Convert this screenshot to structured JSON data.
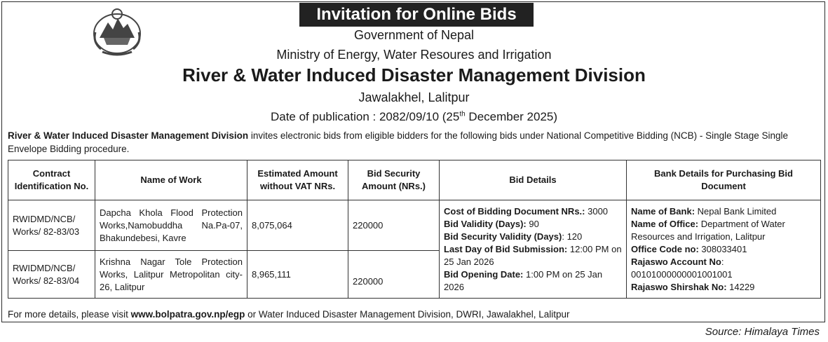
{
  "banner_title": "Invitation for Online Bids",
  "header": {
    "government": "Government of Nepal",
    "ministry": "Ministry of Energy, Water Resoures and Irrigation",
    "division": "River & Water Induced Disaster Management Division",
    "location": "Jawalakhel, Lalitpur",
    "pub_prefix": "Date of publication : 2082/09/10 (25",
    "pub_sup": "th",
    "pub_suffix": " December 2025)"
  },
  "intro": {
    "bold": "River & Water Induced Disaster Management Division",
    "text": " invites electronic bids from eligible bidders for the following bids under National Competitive Bidding (NCB) - Single Stage Single Envelope Bidding procedure."
  },
  "table": {
    "headers": {
      "contract_id": "Contract Identification No.",
      "name_of_work": "Name of Work",
      "estimated_amount": "Estimated Amount without VAT NRs.",
      "bid_security": "Bid Security Amount (NRs.)",
      "bid_details": "Bid Details",
      "bank_details": "Bank Details for Purchasing Bid Document"
    },
    "rows": [
      {
        "contract_id": "RWIDMD/NCB/ Works/ 82-83/03",
        "name_of_work": "Dapcha Khola Flood Protection Works,Namobuddha Na.Pa-07, Bhakundebesi, Kavre",
        "estimated_amount": "8,075,064",
        "bid_security": "220000"
      },
      {
        "contract_id": "RWIDMD/NCB/ Works/ 82-83/04",
        "name_of_work": "Krishna Nagar Tole Protection Works, Lalitpur Metropolitan city-26, Lalitpur",
        "estimated_amount": "8,965,111",
        "bid_security": "220000"
      }
    ],
    "bid_details": {
      "cost_label": "Cost of Bidding Document NRs.:",
      "cost_value": " 3000",
      "validity_label": "Bid Validity (Days):",
      "validity_value": " 90",
      "security_validity_label": "Bid Security Validity (Days)",
      "security_validity_value": ": 120",
      "last_day_label": "Last Day of Bid Submission:",
      "last_day_value": " 12:00 PM on 25 Jan 2026",
      "opening_label": "Bid Opening Date:",
      "opening_value": " 1:00 PM on 25 Jan 2026"
    },
    "bank_details": {
      "bank_label": "Name of Bank:",
      "bank_value": " Nepal Bank Limited",
      "office_label": "Name of Office:",
      "office_value": " Department of  Water Resources and Irrigation, Lalitpur",
      "office_code_label": "Office Code no:",
      "office_code_value": " 308033401",
      "account_label": "Rajaswo Account No",
      "account_value": ": 00101000000001001001",
      "shirshak_label": "Rajaswo Shirshak No:",
      "shirshak_value": " 14229"
    }
  },
  "footer": {
    "prefix": "For more details, please visit ",
    "link": "www.bolpatra.gov.np/egp",
    "suffix": " or Water Induced Disaster Management Division, DWRI, Jawalakhel, Lalitpur"
  },
  "source": "Source: Himalaya Times"
}
